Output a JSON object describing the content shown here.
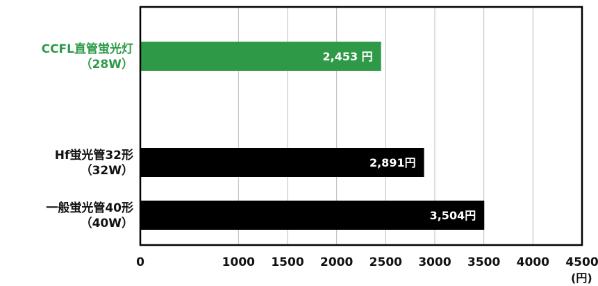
{
  "chart_data": {
    "type": "bar",
    "orientation": "horizontal",
    "title": "",
    "xlabel": "",
    "ylabel": "",
    "unit": "(円)",
    "xlim": [
      0,
      4500
    ],
    "xticks": [
      "0",
      "1000",
      "1500",
      "2000",
      "2500",
      "3000",
      "3500",
      "4000",
      "4500"
    ],
    "tick_values": [
      0,
      1000,
      1500,
      2000,
      2500,
      3000,
      3500,
      4000,
      4500
    ],
    "grid": true,
    "categories": [
      {
        "line1": "CCFL直管蛍光灯",
        "line2": "（28W）"
      },
      {
        "line1": "Hf蛍光管32形",
        "line2": "（32W）"
      },
      {
        "line1": "一般蛍光管40形",
        "line2": "（40W）"
      }
    ],
    "values": [
      2453,
      2891,
      3504
    ],
    "value_labels": [
      "2,453 円",
      "2,891円",
      "3,504円"
    ],
    "colors": {
      "highlight": "#2e9a48",
      "default": "#000000",
      "grid": "#bbbbbb",
      "axis": "#000000"
    },
    "highlight_index": 0
  }
}
